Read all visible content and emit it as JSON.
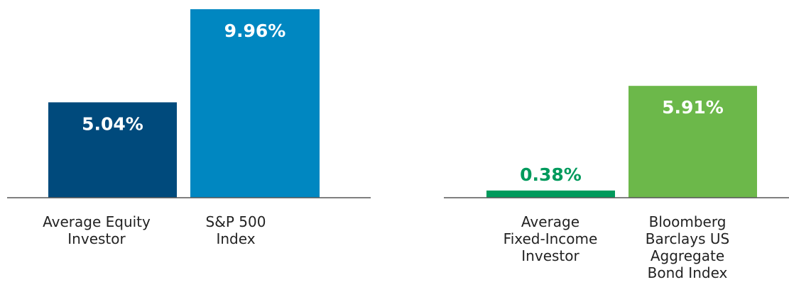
{
  "chart_data": [
    {
      "type": "bar",
      "categories": [
        [
          "Average Equity",
          "Investor"
        ],
        [
          "S&P 500",
          "Index"
        ]
      ],
      "values": [
        5.04,
        9.96
      ],
      "value_labels": [
        "5.04%",
        "9.96%"
      ],
      "colors": [
        "#004a7c",
        "#0087c1"
      ],
      "label_colors": [
        "#ffffff",
        "#ffffff"
      ],
      "ylim": [
        0,
        9.96
      ]
    },
    {
      "type": "bar",
      "categories": [
        [
          "Average",
          "Fixed-Income",
          "Investor"
        ],
        [
          "Bloomberg",
          "Barclays US",
          "Aggregate",
          "Bond Index"
        ]
      ],
      "values": [
        0.38,
        5.91
      ],
      "value_labels": [
        "0.38%",
        "5.91%"
      ],
      "colors": [
        "#009a5c",
        "#6cb84a"
      ],
      "label_colors": [
        "#009a5c",
        "#ffffff"
      ],
      "ylim": [
        0,
        9.96
      ]
    }
  ],
  "colors": {
    "baseline": "#555555",
    "category_text": "#222222"
  }
}
